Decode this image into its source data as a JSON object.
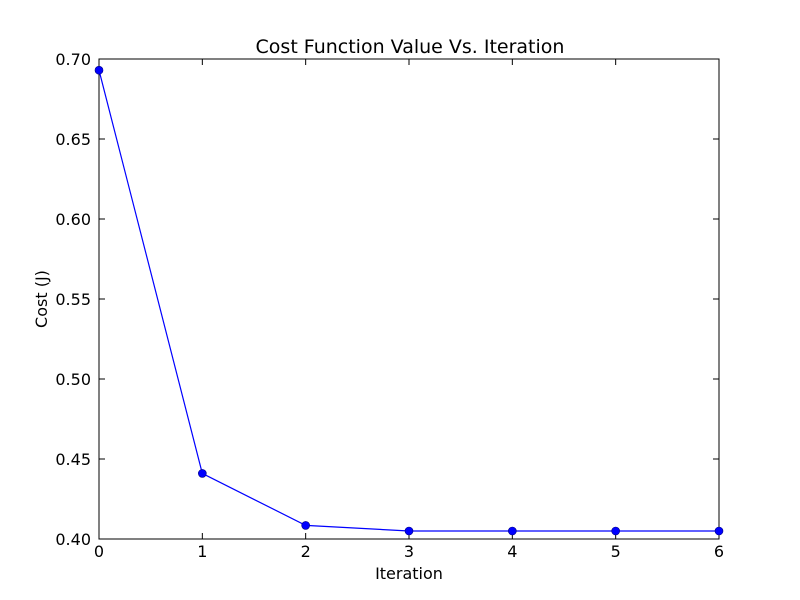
{
  "chart_data": {
    "type": "line",
    "title": "Cost Function Value Vs. Iteration",
    "xlabel": "Iteration",
    "ylabel": "Cost (J)",
    "xlim": [
      0,
      6
    ],
    "ylim": [
      0.4,
      0.7
    ],
    "x_ticks": [
      "0",
      "1",
      "2",
      "3",
      "4",
      "5",
      "6"
    ],
    "y_ticks": [
      "0.40",
      "0.45",
      "0.50",
      "0.55",
      "0.60",
      "0.65",
      "0.70"
    ],
    "grid": false,
    "series": [
      {
        "color": "#0000ff",
        "marker": "circle",
        "points": [
          {
            "x": 0,
            "y": 0.693
          },
          {
            "x": 1,
            "y": 0.441
          },
          {
            "x": 2,
            "y": 0.4085
          },
          {
            "x": 3,
            "y": 0.405
          },
          {
            "x": 4,
            "y": 0.405
          },
          {
            "x": 5,
            "y": 0.405
          },
          {
            "x": 6,
            "y": 0.405
          }
        ]
      }
    ]
  }
}
